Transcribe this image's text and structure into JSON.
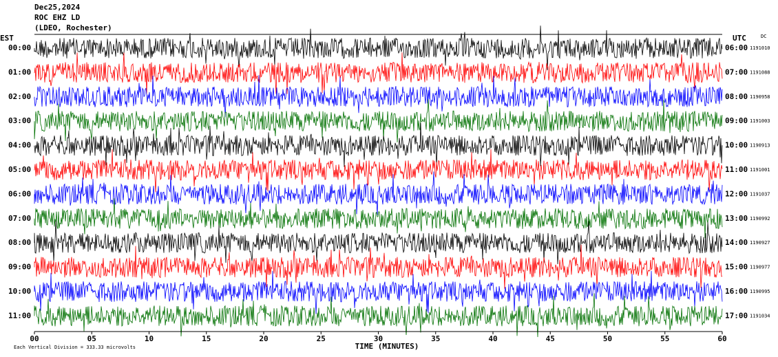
{
  "chart_data": {
    "type": "helicorder",
    "title": "Dec25,2024",
    "subtitle": "ROC EHZ LD",
    "station": "(LDEO, Rochester)",
    "left_axis_label": "EST",
    "right_axis_label": "UTC",
    "dc_label": "DC",
    "xlabel": "TIME (MINUTES)",
    "footnote": "Each Vertical Division = 333.33 microvolts",
    "xlim": [
      0,
      60
    ],
    "xticks": [
      {
        "value": 0,
        "label": "00"
      },
      {
        "value": 5,
        "label": "05"
      },
      10,
      15,
      20,
      25,
      30,
      35,
      40,
      45,
      50,
      55,
      60
    ],
    "rows": [
      {
        "est": "00:00",
        "utc": "06:00",
        "dc": 1191010,
        "color": "#000000"
      },
      {
        "est": "01:00",
        "utc": "07:00",
        "dc": 1191088,
        "color": "#ff0000"
      },
      {
        "est": "02:00",
        "utc": "08:00",
        "dc": 1190958,
        "color": "#0000ff"
      },
      {
        "est": "03:00",
        "utc": "09:00",
        "dc": 1191003,
        "color": "#007000"
      },
      {
        "est": "04:00",
        "utc": "10:00",
        "dc": 1190913,
        "color": "#000000"
      },
      {
        "est": "05:00",
        "utc": "11:00",
        "dc": 1191001,
        "color": "#ff0000"
      },
      {
        "est": "06:00",
        "utc": "12:00",
        "dc": 1191037,
        "color": "#0000ff"
      },
      {
        "est": "07:00",
        "utc": "13:00",
        "dc": 1190992,
        "color": "#007000"
      },
      {
        "est": "08:00",
        "utc": "14:00",
        "dc": 1190927,
        "color": "#000000"
      },
      {
        "est": "09:00",
        "utc": "15:00",
        "dc": 1190977,
        "color": "#ff0000"
      },
      {
        "est": "10:00",
        "utc": "16:00",
        "dc": 1190995,
        "color": "#0000ff"
      },
      {
        "est": "11:00",
        "utc": "17:00",
        "dc": 1191034,
        "color": "#007000"
      }
    ]
  }
}
